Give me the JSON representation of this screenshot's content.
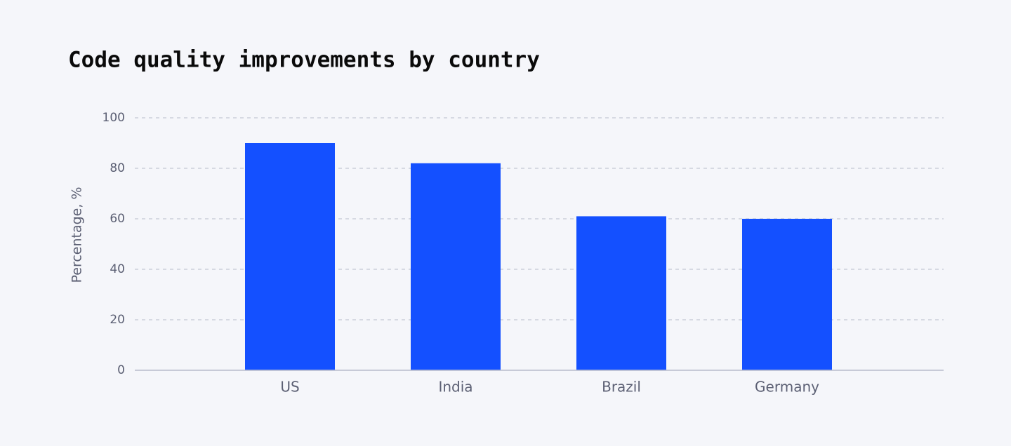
{
  "chart_data": {
    "type": "bar",
    "title": "Code quality improvements by country",
    "y_label": "Percentage, %",
    "categories": [
      "US",
      "India",
      "Brazil",
      "Germany"
    ],
    "values": [
      90,
      82,
      61,
      60
    ],
    "color": "#1450ff",
    "ylim": [
      0,
      100
    ],
    "yticks": [
      0,
      20,
      40,
      60,
      80,
      100
    ],
    "grid": true
  }
}
